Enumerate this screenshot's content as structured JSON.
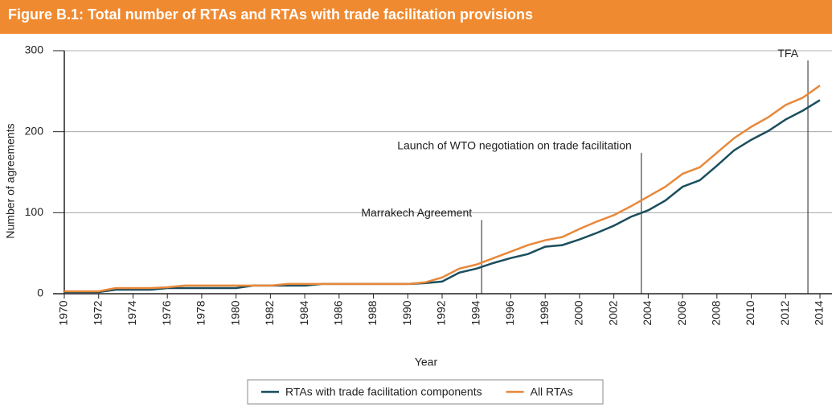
{
  "chart_data": {
    "type": "line",
    "title": "Figure B.1: Total number of RTAs and RTAs with trade facilitation provisions",
    "x_label": "Year",
    "y_label": "Number of agreements",
    "x": [
      1970,
      1971,
      1972,
      1973,
      1974,
      1975,
      1976,
      1977,
      1978,
      1979,
      1980,
      1981,
      1982,
      1983,
      1984,
      1985,
      1986,
      1987,
      1988,
      1989,
      1990,
      1991,
      1992,
      1993,
      1994,
      1995,
      1996,
      1997,
      1998,
      1999,
      2000,
      2001,
      2002,
      2003,
      2004,
      2005,
      2006,
      2007,
      2008,
      2009,
      2010,
      2011,
      2012,
      2013,
      2014
    ],
    "series": [
      {
        "name": "RTAs with trade facilitation components",
        "color": "#1b4e5d",
        "values": [
          2,
          2,
          2,
          5,
          5,
          5,
          7,
          7,
          7,
          7,
          7,
          10,
          10,
          10,
          10,
          12,
          12,
          12,
          12,
          12,
          12,
          13,
          15,
          26,
          31,
          38,
          44,
          49,
          58,
          60,
          67,
          75,
          84,
          95,
          103,
          115,
          132,
          140,
          158,
          177,
          190,
          201,
          215,
          226,
          239
        ]
      },
      {
        "name": "All RTAs",
        "color": "#e8883a",
        "values": [
          3,
          3,
          3,
          7,
          7,
          7,
          8,
          10,
          10,
          10,
          10,
          10,
          10,
          12,
          12,
          12,
          12,
          12,
          12,
          12,
          12,
          14,
          20,
          31,
          36,
          44,
          52,
          60,
          66,
          70,
          80,
          89,
          97,
          108,
          120,
          132,
          148,
          156,
          174,
          192,
          206,
          218,
          233,
          242,
          257
        ]
      }
    ],
    "xlim": [
      1970,
      2014
    ],
    "xticks": [
      1970,
      1972,
      1974,
      1976,
      1978,
      1980,
      1982,
      1984,
      1986,
      1988,
      1990,
      1992,
      1994,
      1996,
      1998,
      2000,
      2002,
      2004,
      2006,
      2008,
      2010,
      2012,
      2014
    ],
    "ylim": [
      0,
      300
    ],
    "yticks": [
      0,
      100,
      200,
      300
    ],
    "grid": true,
    "annotations": [
      {
        "text": "Marrakech Agreement",
        "x": 1994.3,
        "y": 91
      },
      {
        "text": "Launch of WTO negotiation on trade facilitation",
        "x": 2003.6,
        "y": 174
      },
      {
        "text": "TFA",
        "x": 2013.3,
        "y": 288
      }
    ],
    "legend": "bottom"
  }
}
